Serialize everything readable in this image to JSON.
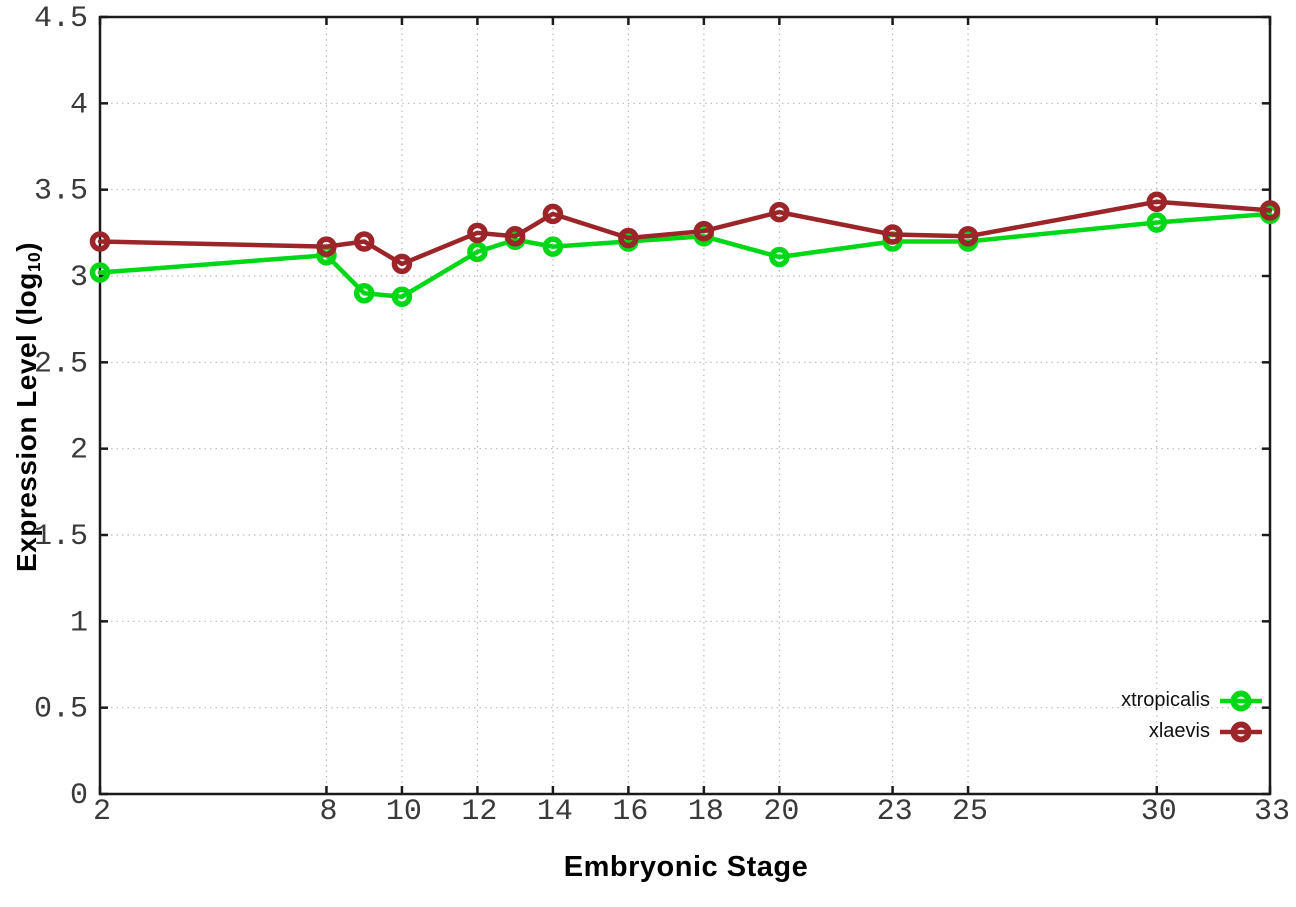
{
  "chart_data": {
    "type": "line",
    "x": [
      2,
      8,
      9,
      10,
      12,
      13,
      14,
      16,
      18,
      20,
      23,
      25,
      30,
      33
    ],
    "series": [
      {
        "name": "xtropicalis",
        "color": "#00d717",
        "marker": "open-circle",
        "values": [
          3.02,
          3.12,
          2.9,
          2.88,
          3.14,
          3.21,
          3.17,
          3.2,
          3.23,
          3.11,
          3.2,
          3.2,
          3.31,
          3.36
        ]
      },
      {
        "name": "xlaevis",
        "color": "#9b2528",
        "marker": "open-circle",
        "values": [
          3.2,
          3.17,
          3.2,
          3.07,
          3.25,
          3.23,
          3.36,
          3.22,
          3.26,
          3.37,
          3.24,
          3.23,
          3.43,
          3.38
        ]
      }
    ],
    "xlabel": "Embryonic Stage",
    "ylabel": {
      "pre": "Expression Level (log",
      "sub": "10",
      "post": ")"
    },
    "xlim": [
      2,
      33
    ],
    "ylim": [
      0,
      4.5
    ],
    "xticks": {
      "values": [
        2,
        8,
        10,
        12,
        14,
        16,
        18,
        20,
        23,
        25,
        30,
        33
      ],
      "labels": [
        "2",
        "8",
        "10",
        "12",
        "14",
        "16",
        "18",
        "20",
        "23",
        "25",
        "30",
        "33"
      ]
    },
    "yticks": {
      "values": [
        0,
        0.5,
        1,
        1.5,
        2,
        2.5,
        3,
        3.5,
        4,
        4.5
      ],
      "labels": [
        "0",
        "0.5",
        "1",
        "1.5",
        "2",
        "2.5",
        "3",
        "3.5",
        "4",
        "4.5"
      ]
    },
    "grid": true,
    "legend_position": "bottom-right"
  },
  "colors": {
    "background": "#ffffff",
    "axis": "#1a1a1a",
    "grid": "#bbbbbb",
    "tick_text": "#3a3a3a",
    "title_text": "#000000"
  }
}
